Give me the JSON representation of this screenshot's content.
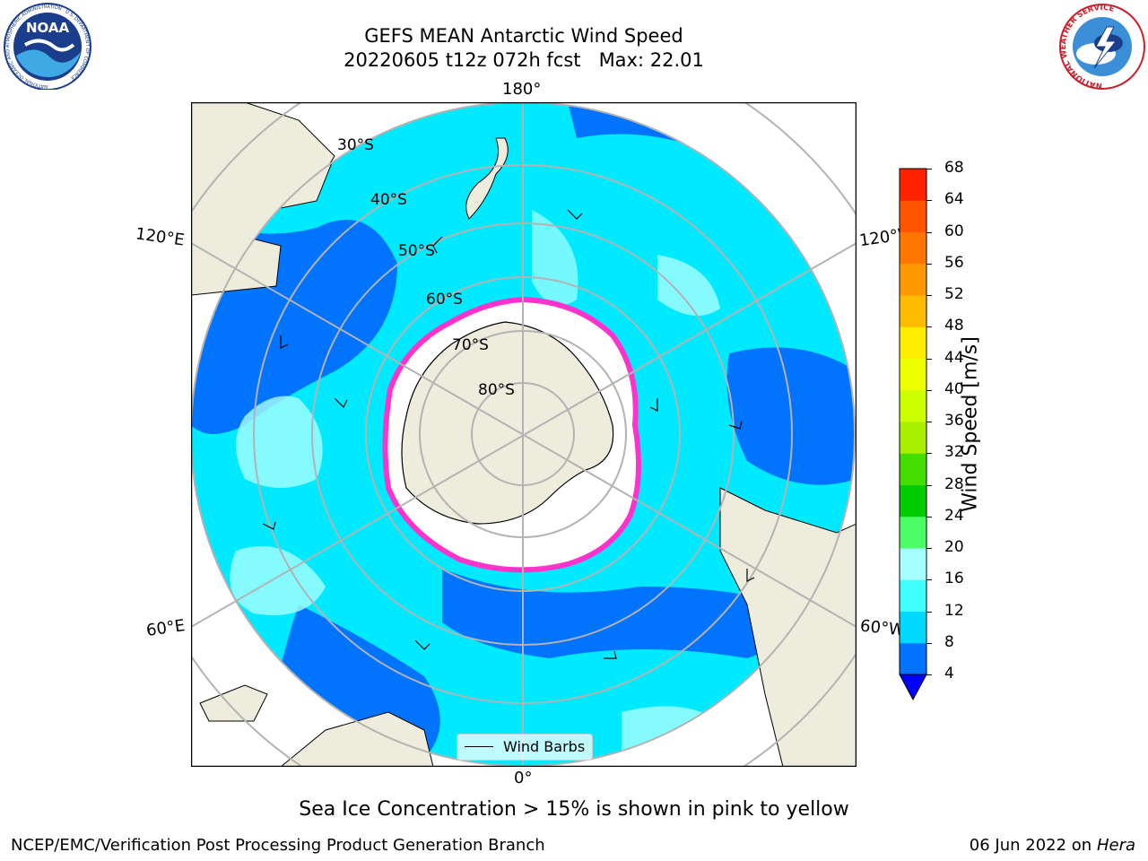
{
  "title": {
    "line1": "GEFS MEAN Antarctic Wind Speed",
    "line2": "20220605 t12z 072h fcst   Max: 22.01"
  },
  "map": {
    "projection": "south-polar-stereographic",
    "longitude_labels": {
      "top": "180°",
      "bottom": "0°",
      "upper_left": "120°E",
      "upper_right": "120°W",
      "lower_left": "60°E",
      "lower_right": "60°W"
    },
    "latitude_labels": [
      "30°S",
      "40°S",
      "50°S",
      "60°S",
      "70°S",
      "80°S"
    ],
    "legend": {
      "item": "Wind Barbs"
    },
    "colors": {
      "ocean_low": "#0050ff",
      "ocean_mid": "#00eaff",
      "ocean_high": "#a6ffff",
      "land": "#eeecdc",
      "ice_edge": "#ff33cc"
    }
  },
  "colorbar": {
    "title": "Wind Speed [m/s]",
    "ticks": [
      "4",
      "8",
      "12",
      "16",
      "20",
      "24",
      "28",
      "32",
      "36",
      "40",
      "44",
      "48",
      "52",
      "56",
      "60",
      "64",
      "68"
    ],
    "colors": [
      "#0073ff",
      "#00d9ff",
      "#40ffff",
      "#a6ffff",
      "#4dff66",
      "#00cc00",
      "#44dd00",
      "#aaee00",
      "#ccff00",
      "#eeff00",
      "#ffee00",
      "#ffbb00",
      "#ff9900",
      "#ff7700",
      "#ff5500",
      "#ff2200",
      "#ff0000"
    ],
    "extend_color": "#0000ff"
  },
  "note": "Sea Ice Concentration > 15% is shown in pink to yellow",
  "footer": {
    "credit": "NCEP/EMC/Verification Post Processing Product Generation Branch",
    "date_prefix": "06 Jun 2022 on",
    "machine": "Hera"
  },
  "logos": {
    "left": "NOAA",
    "left_ring": "NATIONAL OCEANIC AND ATMOSPHERIC ADMINISTRATION · U.S. DEPARTMENT OF COMMERCE",
    "right_ring": "NATIONAL WEATHER SERVICE"
  }
}
